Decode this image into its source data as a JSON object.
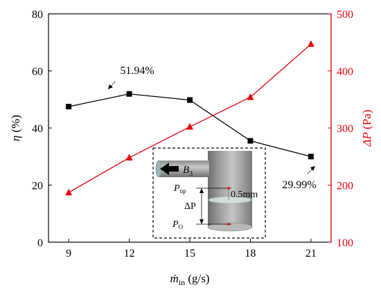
{
  "chart_data": {
    "type": "line",
    "x": [
      9,
      12,
      15,
      18,
      21
    ],
    "xlim": [
      8,
      22
    ],
    "x_ticks": [
      9,
      12,
      15,
      18,
      21
    ],
    "xlabel": {
      "symbol": "ṁ",
      "subscript": "in",
      "unit": " (g/s)"
    },
    "y_left": {
      "label": {
        "symbol": "η",
        "unit": " (%)"
      },
      "lim": [
        0,
        80
      ],
      "ticks": [
        0,
        20,
        40,
        60,
        80
      ],
      "color": "#000000"
    },
    "y_right": {
      "label": {
        "symbol": "ΔP",
        "unit": " (Pa)"
      },
      "lim": [
        100,
        500
      ],
      "ticks": [
        100,
        200,
        300,
        400,
        500
      ],
      "color": "#e8000b"
    },
    "series": [
      {
        "axis": "left",
        "values": [
          47.5,
          51.94,
          49.8,
          35.5,
          29.99
        ],
        "color": "#000000",
        "marker": "square"
      },
      {
        "axis": "right",
        "values": [
          187,
          248,
          302,
          354,
          447
        ],
        "color": "#e8000b",
        "marker": "triangle"
      }
    ],
    "annotations": [
      {
        "text": "51.94%",
        "series": 0,
        "point": 1
      },
      {
        "text": "29.99%",
        "series": 0,
        "point": 4
      }
    ],
    "inset": {
      "label_b": "B",
      "label_b_sub": "3",
      "label_pup": "P",
      "label_pup_sub": "up",
      "label_dp": "ΔP",
      "label_gap": "0.5mm",
      "label_po": "P",
      "label_po_sub": "O"
    }
  }
}
